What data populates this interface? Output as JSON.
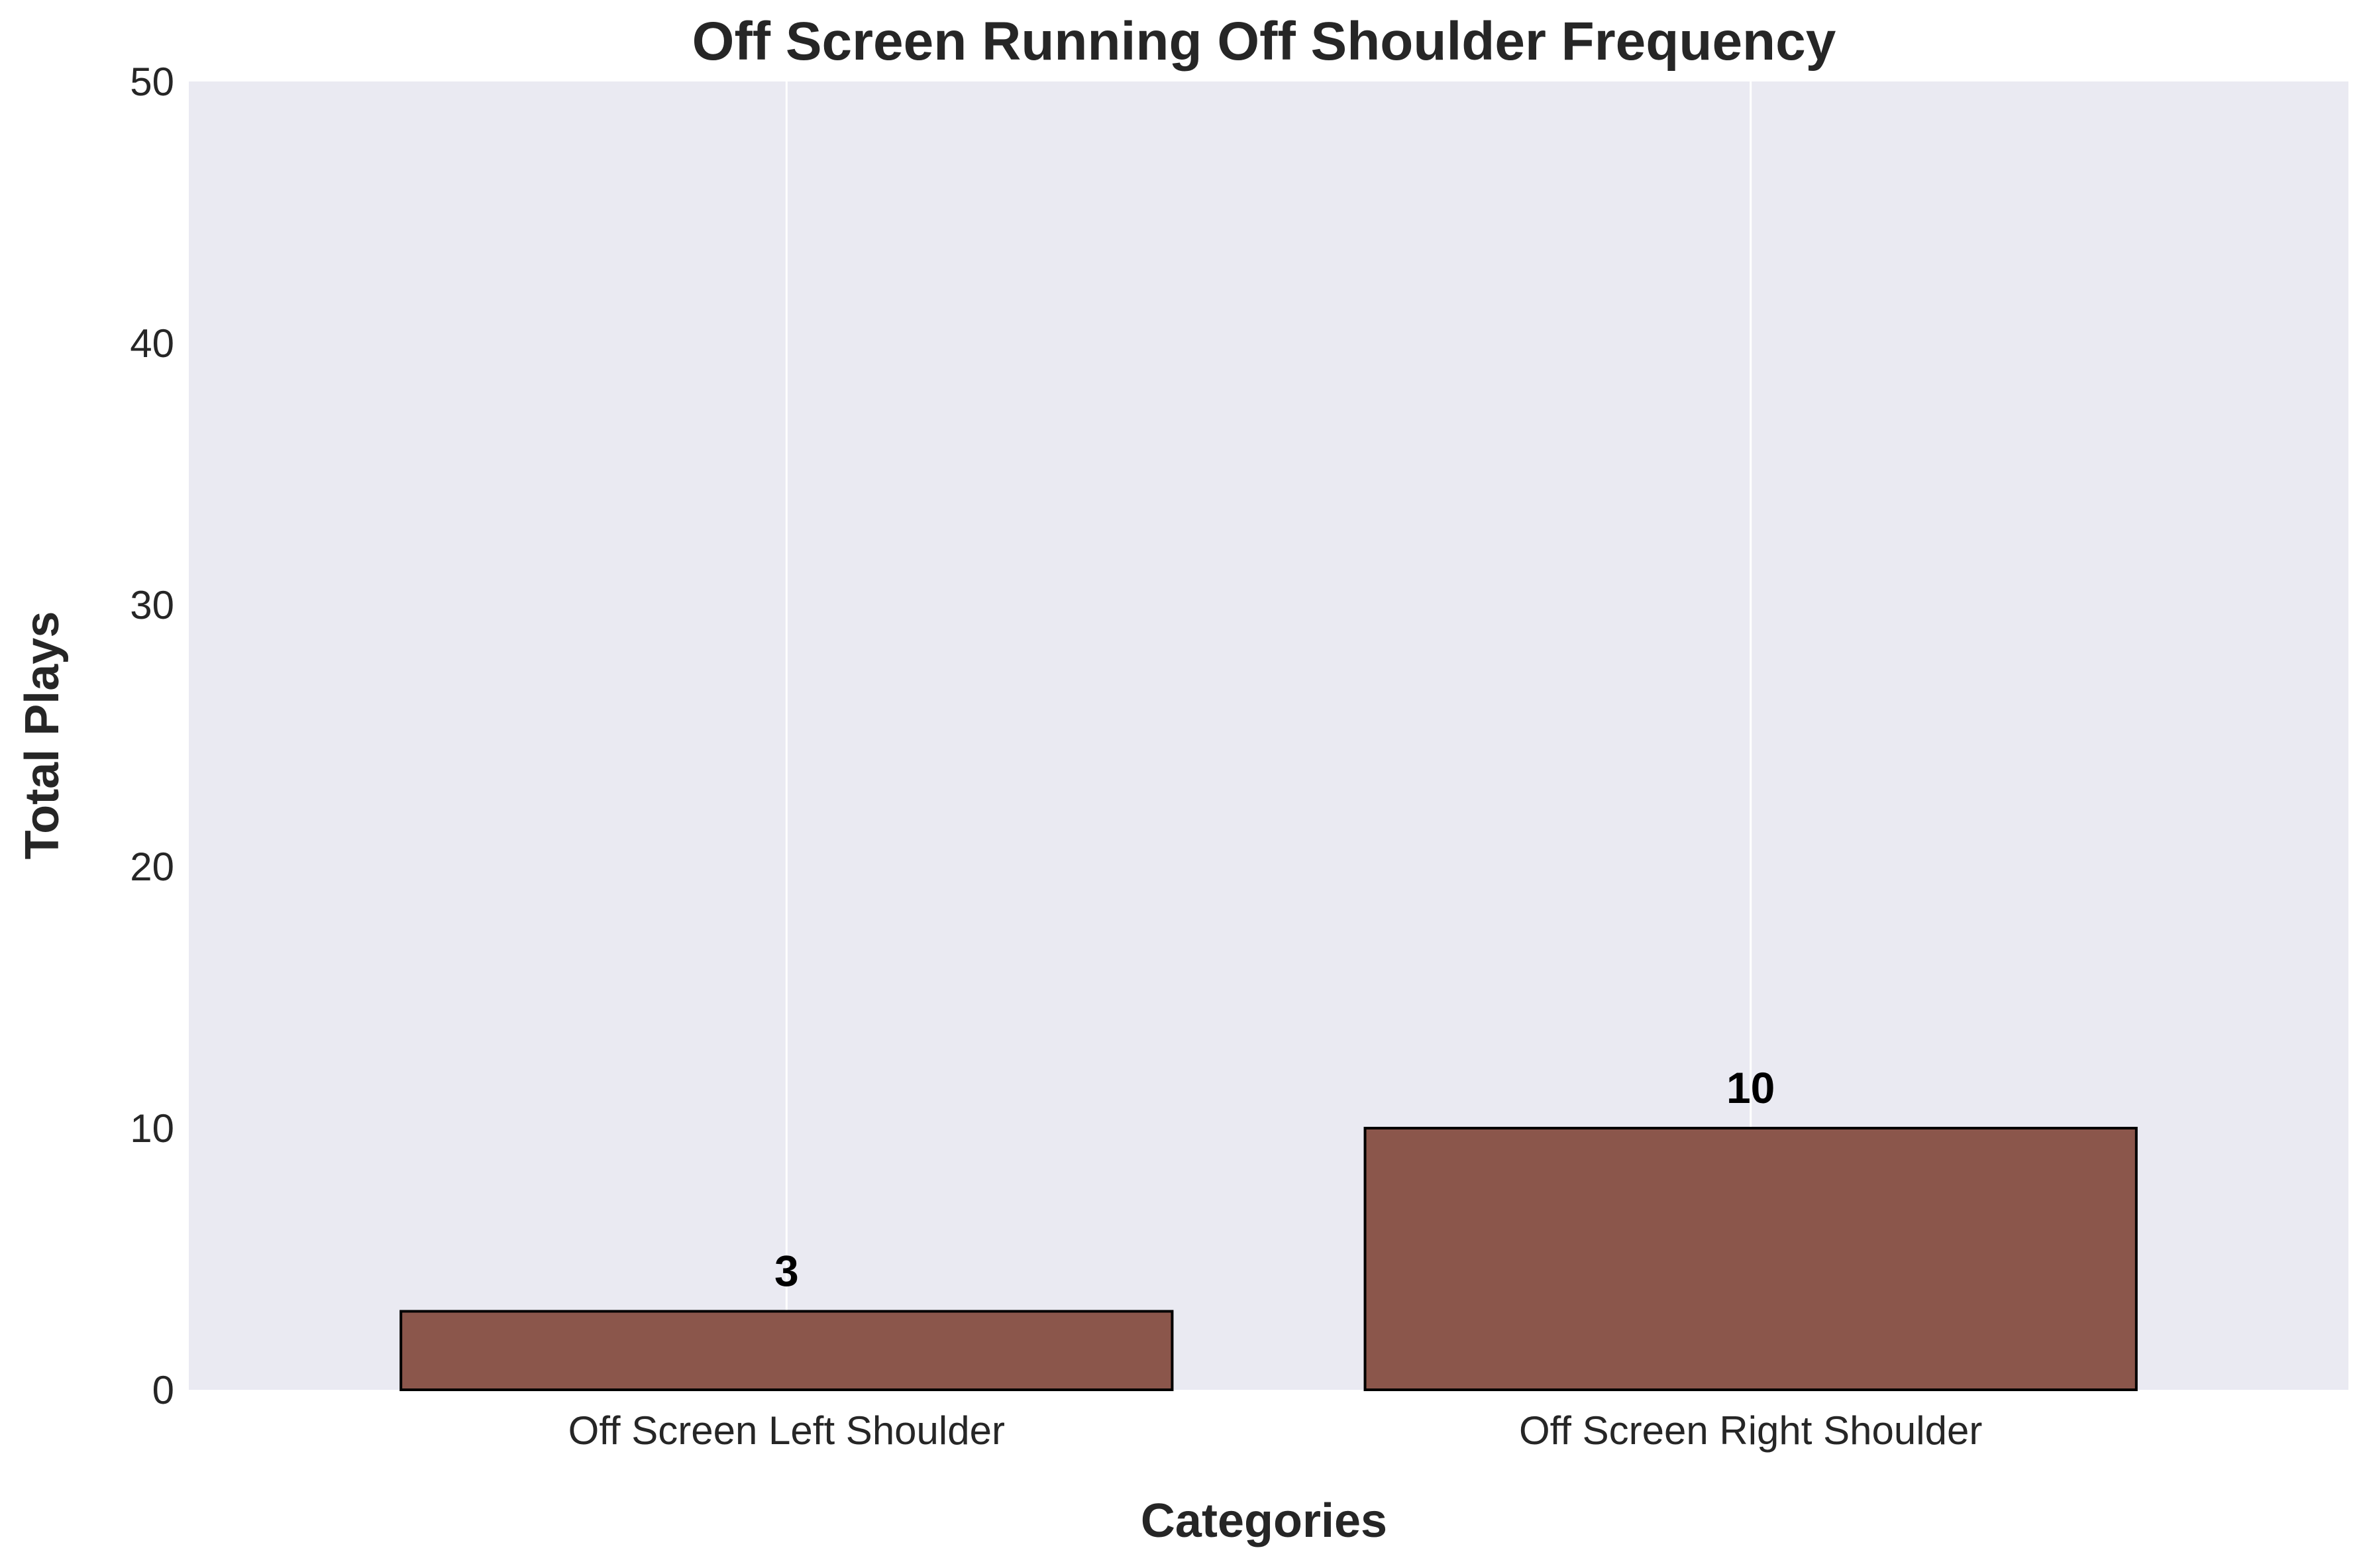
{
  "chart_data": {
    "type": "bar",
    "title": "Off Screen Running Off Shoulder Frequency",
    "xlabel": "Categories",
    "ylabel": "Total Plays",
    "categories": [
      "Off Screen Left Shoulder",
      "Off Screen Right Shoulder"
    ],
    "values": [
      3,
      10
    ],
    "value_labels": [
      "3",
      "10"
    ],
    "ylim": [
      0,
      50
    ],
    "yticks": [
      0,
      10,
      20,
      30,
      40,
      50
    ],
    "ytick_labels": [
      "0",
      "10",
      "20",
      "30",
      "40",
      "50"
    ],
    "grid": "vertical",
    "legend": "none",
    "colors": {
      "bar": "#8b564b",
      "bar_edge": "#000000",
      "plot_background": "#eaeaf2",
      "grid": "#ffffff"
    }
  }
}
